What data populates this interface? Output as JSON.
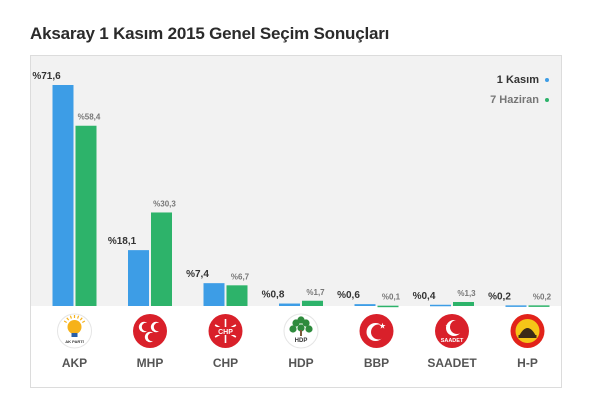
{
  "title": "Aksaray 1 Kasım 2015 Genel Seçim Sonuçları",
  "colors": {
    "new": "#3d9de6",
    "old": "#2db36a",
    "logo_red": "#d9202a",
    "logo_hdp": "#2e8b3d",
    "logo_hp": "#e2231a"
  },
  "chart_data": {
    "type": "bar",
    "title": "Aksaray 1 Kasım 2015 Genel Seçim Sonuçları",
    "categories": [
      "AKP",
      "MHP",
      "CHP",
      "HDP",
      "BBP",
      "SAADET",
      "H-P"
    ],
    "series": [
      {
        "name": "1 Kasım",
        "values": [
          71.6,
          18.1,
          7.4,
          0.8,
          0.6,
          0.4,
          0.2
        ],
        "labels": [
          "%71,6",
          "%18,1",
          "%7,4",
          "%0,8",
          "%0,6",
          "%0,4",
          "%0,2"
        ]
      },
      {
        "name": "7 Haziran",
        "values": [
          58.4,
          30.3,
          6.7,
          1.7,
          0.1,
          1.3,
          0.2
        ],
        "labels": [
          "%58,4",
          "%30,3",
          "%6,7",
          "%1,7",
          "%0,1",
          "%1,3",
          "%0,2"
        ]
      }
    ],
    "legend_position": "top-right",
    "ylim": [
      0,
      71.6
    ],
    "grid": false
  },
  "logos": [
    {
      "party": "AKP",
      "icon": "ak-parti-lightbulb-icon",
      "caption": "AK PARTİ"
    },
    {
      "party": "MHP",
      "icon": "mhp-three-crescents-icon",
      "caption": ""
    },
    {
      "party": "CHP",
      "icon": "chp-six-arrows-icon",
      "caption": "CHP"
    },
    {
      "party": "HDP",
      "icon": "hdp-tree-icon",
      "caption": "HDP"
    },
    {
      "party": "BBP",
      "icon": "bbp-crescent-star-icon",
      "caption": ""
    },
    {
      "party": "SAADET",
      "icon": "saadet-crescent-icon",
      "caption": "SAADET"
    },
    {
      "party": "H-P",
      "icon": "hak-ve-hukuk-partisi-icon",
      "caption": ""
    }
  ]
}
